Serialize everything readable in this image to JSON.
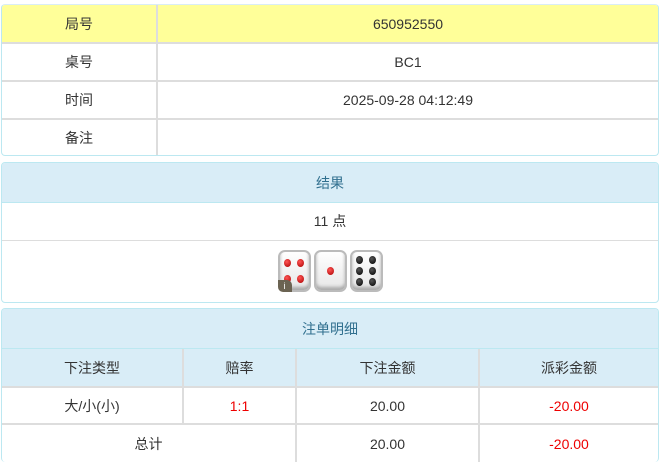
{
  "info": {
    "rows": [
      {
        "label": "局号",
        "value": "650952550"
      },
      {
        "label": "桌号",
        "value": "BC1"
      },
      {
        "label": "时间",
        "value": "2025-09-28 04:12:49"
      },
      {
        "label": "备注",
        "value": ""
      }
    ]
  },
  "result": {
    "title": "结果",
    "points": "11 点",
    "dice": [
      4,
      1,
      6
    ],
    "info_badge": "i"
  },
  "bets": {
    "title": "注单明细",
    "headers": [
      "下注类型",
      "赔率",
      "下注金额",
      "派彩金额"
    ],
    "rows": [
      {
        "type": "大/小(小)",
        "odds": "1:1",
        "amount": "20.00",
        "payout": "-20.00"
      }
    ],
    "total": {
      "label": "总计",
      "amount": "20.00",
      "payout": "-20.00"
    }
  },
  "colors": {
    "highlight": "#ffff99",
    "header_bg": "#d9edf7",
    "negative": "#ee0000"
  }
}
